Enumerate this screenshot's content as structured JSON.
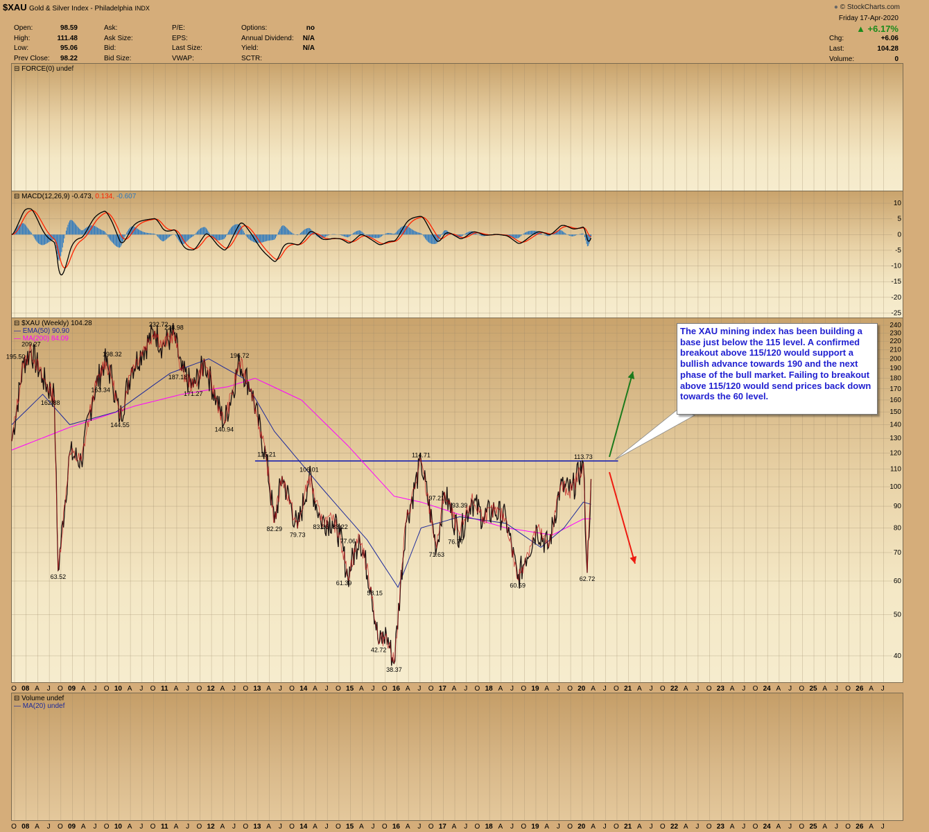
{
  "header": {
    "symbol": "$XAU",
    "name": "Gold & Silver Index - Philadelphia",
    "exchange": "INDX",
    "brand": "© StockCharts.com"
  },
  "quote": {
    "col1": [
      {
        "label": "Open:",
        "value": "98.59"
      },
      {
        "label": "High:",
        "value": "111.48"
      },
      {
        "label": "Low:",
        "value": "95.06"
      },
      {
        "label": "Prev Close:",
        "value": "98.22"
      }
    ],
    "col2": [
      {
        "label": "Ask:",
        "value": ""
      },
      {
        "label": "Ask Size:",
        "value": ""
      },
      {
        "label": "Bid:",
        "value": ""
      },
      {
        "label": "Bid Size:",
        "value": ""
      }
    ],
    "col3": [
      {
        "label": "P/E:",
        "value": ""
      },
      {
        "label": "EPS:",
        "value": ""
      },
      {
        "label": "Last Size:",
        "value": ""
      },
      {
        "label": "VWAP:",
        "value": ""
      }
    ],
    "col4": [
      {
        "label": "Options:",
        "value": "no"
      },
      {
        "label": "Annual Dividend:",
        "value": "N/A"
      },
      {
        "label": "Yield:",
        "value": "N/A"
      },
      {
        "label": "SCTR:",
        "value": ""
      }
    ],
    "date": "Friday  17-Apr-2020",
    "change_pct": "▲ +6.17%",
    "right": [
      {
        "label": "Chg:",
        "value": "+6.06"
      },
      {
        "label": "Last:",
        "value": "104.28"
      },
      {
        "label": "Volume:",
        "value": "0"
      }
    ]
  },
  "panels": {
    "force_label": "FORCE(0) undef",
    "macd_label": "MACD(12,26,9) -0.473,",
    "macd_signal": "0.134,",
    "macd_hist": "-0.607",
    "price_label": "$XAU (Weekly) 104.28",
    "ema_label": "EMA(50) 90.90",
    "ma_label": "MA(200) 84.09",
    "volume_label": "Volume undef",
    "vol_ma_label": "MA(20) undef"
  },
  "callout": {
    "text": "The XAU mining index has been building a base just below the 115 level. A confirmed breakout above 115/120 would support a bullish advance towards 190 and the next phase of the bull market. Failing to breakout above 115/120 would send prices back down towards the 60 level."
  },
  "colors": {
    "price": "#000000",
    "ema": "#1d2a9a",
    "ma": "#ff00ff",
    "macd": "#000000",
    "signal": "#ff2200",
    "hist": "#2a78c0",
    "resistance": "#1a22b0",
    "up_arrow": "#1c7a1c",
    "down_arrow": "#ee1a10"
  },
  "chart_data": {
    "type": "line",
    "title": "$XAU (Weekly) 104.28",
    "x_axis_labels": [
      "O",
      "08",
      "A",
      "J",
      "O",
      "09",
      "A",
      "J",
      "O",
      "10",
      "A",
      "J",
      "O",
      "11",
      "A",
      "J",
      "O",
      "12",
      "A",
      "J",
      "O",
      "13",
      "A",
      "J",
      "O",
      "14",
      "A",
      "J",
      "O",
      "15",
      "A",
      "J",
      "O",
      "16",
      "A",
      "J",
      "O",
      "17",
      "A",
      "J",
      "O",
      "18",
      "A",
      "J",
      "O",
      "19",
      "A",
      "J",
      "O",
      "20",
      "A",
      "J",
      "O",
      "21",
      "A",
      "J",
      "O",
      "22",
      "A",
      "J",
      "O",
      "23",
      "A",
      "J",
      "O",
      "24",
      "A",
      "J",
      "O",
      "25",
      "A",
      "J",
      "O",
      "26",
      "A",
      "J"
    ],
    "y_price_ticks": [
      40,
      50,
      60,
      70,
      80,
      90,
      100,
      110,
      120,
      130,
      140,
      150,
      160,
      170,
      180,
      190,
      200,
      210,
      220,
      230,
      240
    ],
    "y_price_scale": "log",
    "y_macd_ticks": [
      10,
      5,
      0,
      -5,
      -10,
      -15,
      -20,
      -25
    ],
    "series": [
      {
        "name": "$XAU (Weekly)",
        "type": "line",
        "x": [
          "2007-10",
          "2008-01",
          "2008-03",
          "2008-06",
          "2008-09",
          "2008-10",
          "2009-01",
          "2009-04",
          "2009-07",
          "2009-10",
          "2009-12",
          "2010-02",
          "2010-05",
          "2010-08",
          "2010-11",
          "2011-01",
          "2011-04",
          "2011-06",
          "2011-09",
          "2011-12",
          "2012-03",
          "2012-05",
          "2012-09",
          "2012-12",
          "2013-04",
          "2013-06",
          "2013-08",
          "2013-12",
          "2014-03",
          "2014-06",
          "2014-09",
          "2014-11",
          "2015-01",
          "2015-04",
          "2015-07",
          "2015-09",
          "2015-11",
          "2016-01",
          "2016-04",
          "2016-08",
          "2016-12",
          "2017-02",
          "2017-06",
          "2017-09",
          "2017-12",
          "2018-03",
          "2018-06",
          "2018-09",
          "2018-11",
          "2019-02",
          "2019-05",
          "2019-08",
          "2019-11",
          "2020-02",
          "2020-03",
          "2020-04"
        ],
        "values": [
          128,
          195.5,
          209.27,
          180,
          162.88,
          63.52,
          120,
          115,
          163.34,
          198.32,
          180,
          144.55,
          190,
          210,
          232.72,
          215,
          228.98,
          187.18,
          171.27,
          196.72,
          160,
          140.94,
          196.72,
          170,
          115.21,
          82.29,
          106.01,
          79.73,
          106.01,
          83.26,
          83.22,
          77.06,
          61.39,
          77.06,
          58.15,
          42.72,
          45,
          38.37,
          82,
          114.71,
          71.63,
          97.21,
          76.77,
          93.39,
          85,
          88,
          84,
          60.59,
          68,
          80,
          72,
          100,
          98,
          113.73,
          62.72,
          104.28
        ]
      },
      {
        "name": "EMA(50)",
        "type": "line",
        "x": [
          "2007-10",
          "2008-06",
          "2009-01",
          "2010-01",
          "2011-03",
          "2012-01",
          "2012-10",
          "2013-06",
          "2014-06",
          "2015-06",
          "2016-02",
          "2016-08",
          "2017-06",
          "2018-06",
          "2019-03",
          "2019-09",
          "2020-02",
          "2020-04"
        ],
        "values": [
          140,
          165,
          140,
          150,
          185,
          200,
          180,
          135,
          100,
          75,
          58,
          80,
          85,
          82,
          72,
          80,
          92,
          90.9
        ]
      },
      {
        "name": "MA(200)",
        "type": "line",
        "x": [
          "2007-10",
          "2009-01",
          "2010-06",
          "2011-06",
          "2012-06",
          "2013-01",
          "2014-01",
          "2015-01",
          "2016-01",
          "2016-08",
          "2017-06",
          "2018-06",
          "2019-06",
          "2020-02",
          "2020-04"
        ],
        "values": [
          122,
          138,
          155,
          165,
          172,
          180,
          160,
          125,
          95,
          92,
          86,
          80,
          77,
          84,
          84.09
        ]
      }
    ],
    "annotations": [
      {
        "label": "195.50",
        "x": "2007-11",
        "y": 195.5
      },
      {
        "label": "209.27",
        "x": "2008-03",
        "y": 209.27
      },
      {
        "label": "162.88",
        "x": "2008-08",
        "y": 162.88
      },
      {
        "label": "63.52",
        "x": "2008-10",
        "y": 63.52
      },
      {
        "label": "163.34",
        "x": "2009-09",
        "y": 163.34
      },
      {
        "label": "198.32",
        "x": "2009-12",
        "y": 198.32
      },
      {
        "label": "144.55",
        "x": "2010-02",
        "y": 144.55
      },
      {
        "label": "232.72",
        "x": "2010-12",
        "y": 232.72
      },
      {
        "label": "228.98",
        "x": "2011-04",
        "y": 228.98
      },
      {
        "label": "187.18",
        "x": "2011-05",
        "y": 187.18
      },
      {
        "label": "171.27",
        "x": "2011-09",
        "y": 171.27
      },
      {
        "label": "140.94",
        "x": "2012-05",
        "y": 140.94
      },
      {
        "label": "196.72",
        "x": "2012-09",
        "y": 196.72
      },
      {
        "label": "115.21",
        "x": "2013-04",
        "y": 115.21
      },
      {
        "label": "82.29",
        "x": "2013-06",
        "y": 82.29
      },
      {
        "label": "79.73",
        "x": "2013-12",
        "y": 79.73
      },
      {
        "label": "106.01",
        "x": "2014-03",
        "y": 106.01
      },
      {
        "label": "83.26",
        "x": "2014-06",
        "y": 83.26
      },
      {
        "label": "83.22",
        "x": "2014-11",
        "y": 83.22
      },
      {
        "label": "77.06",
        "x": "2015-01",
        "y": 77.06
      },
      {
        "label": "61.39",
        "x": "2014-12",
        "y": 61.39
      },
      {
        "label": "58.15",
        "x": "2015-08",
        "y": 58.15
      },
      {
        "label": "42.72",
        "x": "2015-09",
        "y": 42.72
      },
      {
        "label": "38.37",
        "x": "2016-01",
        "y": 38.37
      },
      {
        "label": "114.71",
        "x": "2016-08",
        "y": 114.71
      },
      {
        "label": "97.21",
        "x": "2016-12",
        "y": 97.21
      },
      {
        "label": "71.63",
        "x": "2016-12",
        "y": 71.63
      },
      {
        "label": "93.39",
        "x": "2017-06",
        "y": 93.39
      },
      {
        "label": "76.77",
        "x": "2017-05",
        "y": 76.77
      },
      {
        "label": "60.59",
        "x": "2018-09",
        "y": 60.59
      },
      {
        "label": "113.73",
        "x": "2020-02",
        "y": 113.73
      },
      {
        "label": "62.72",
        "x": "2020-03",
        "y": 62.72
      }
    ],
    "resistance_level": 115
  }
}
